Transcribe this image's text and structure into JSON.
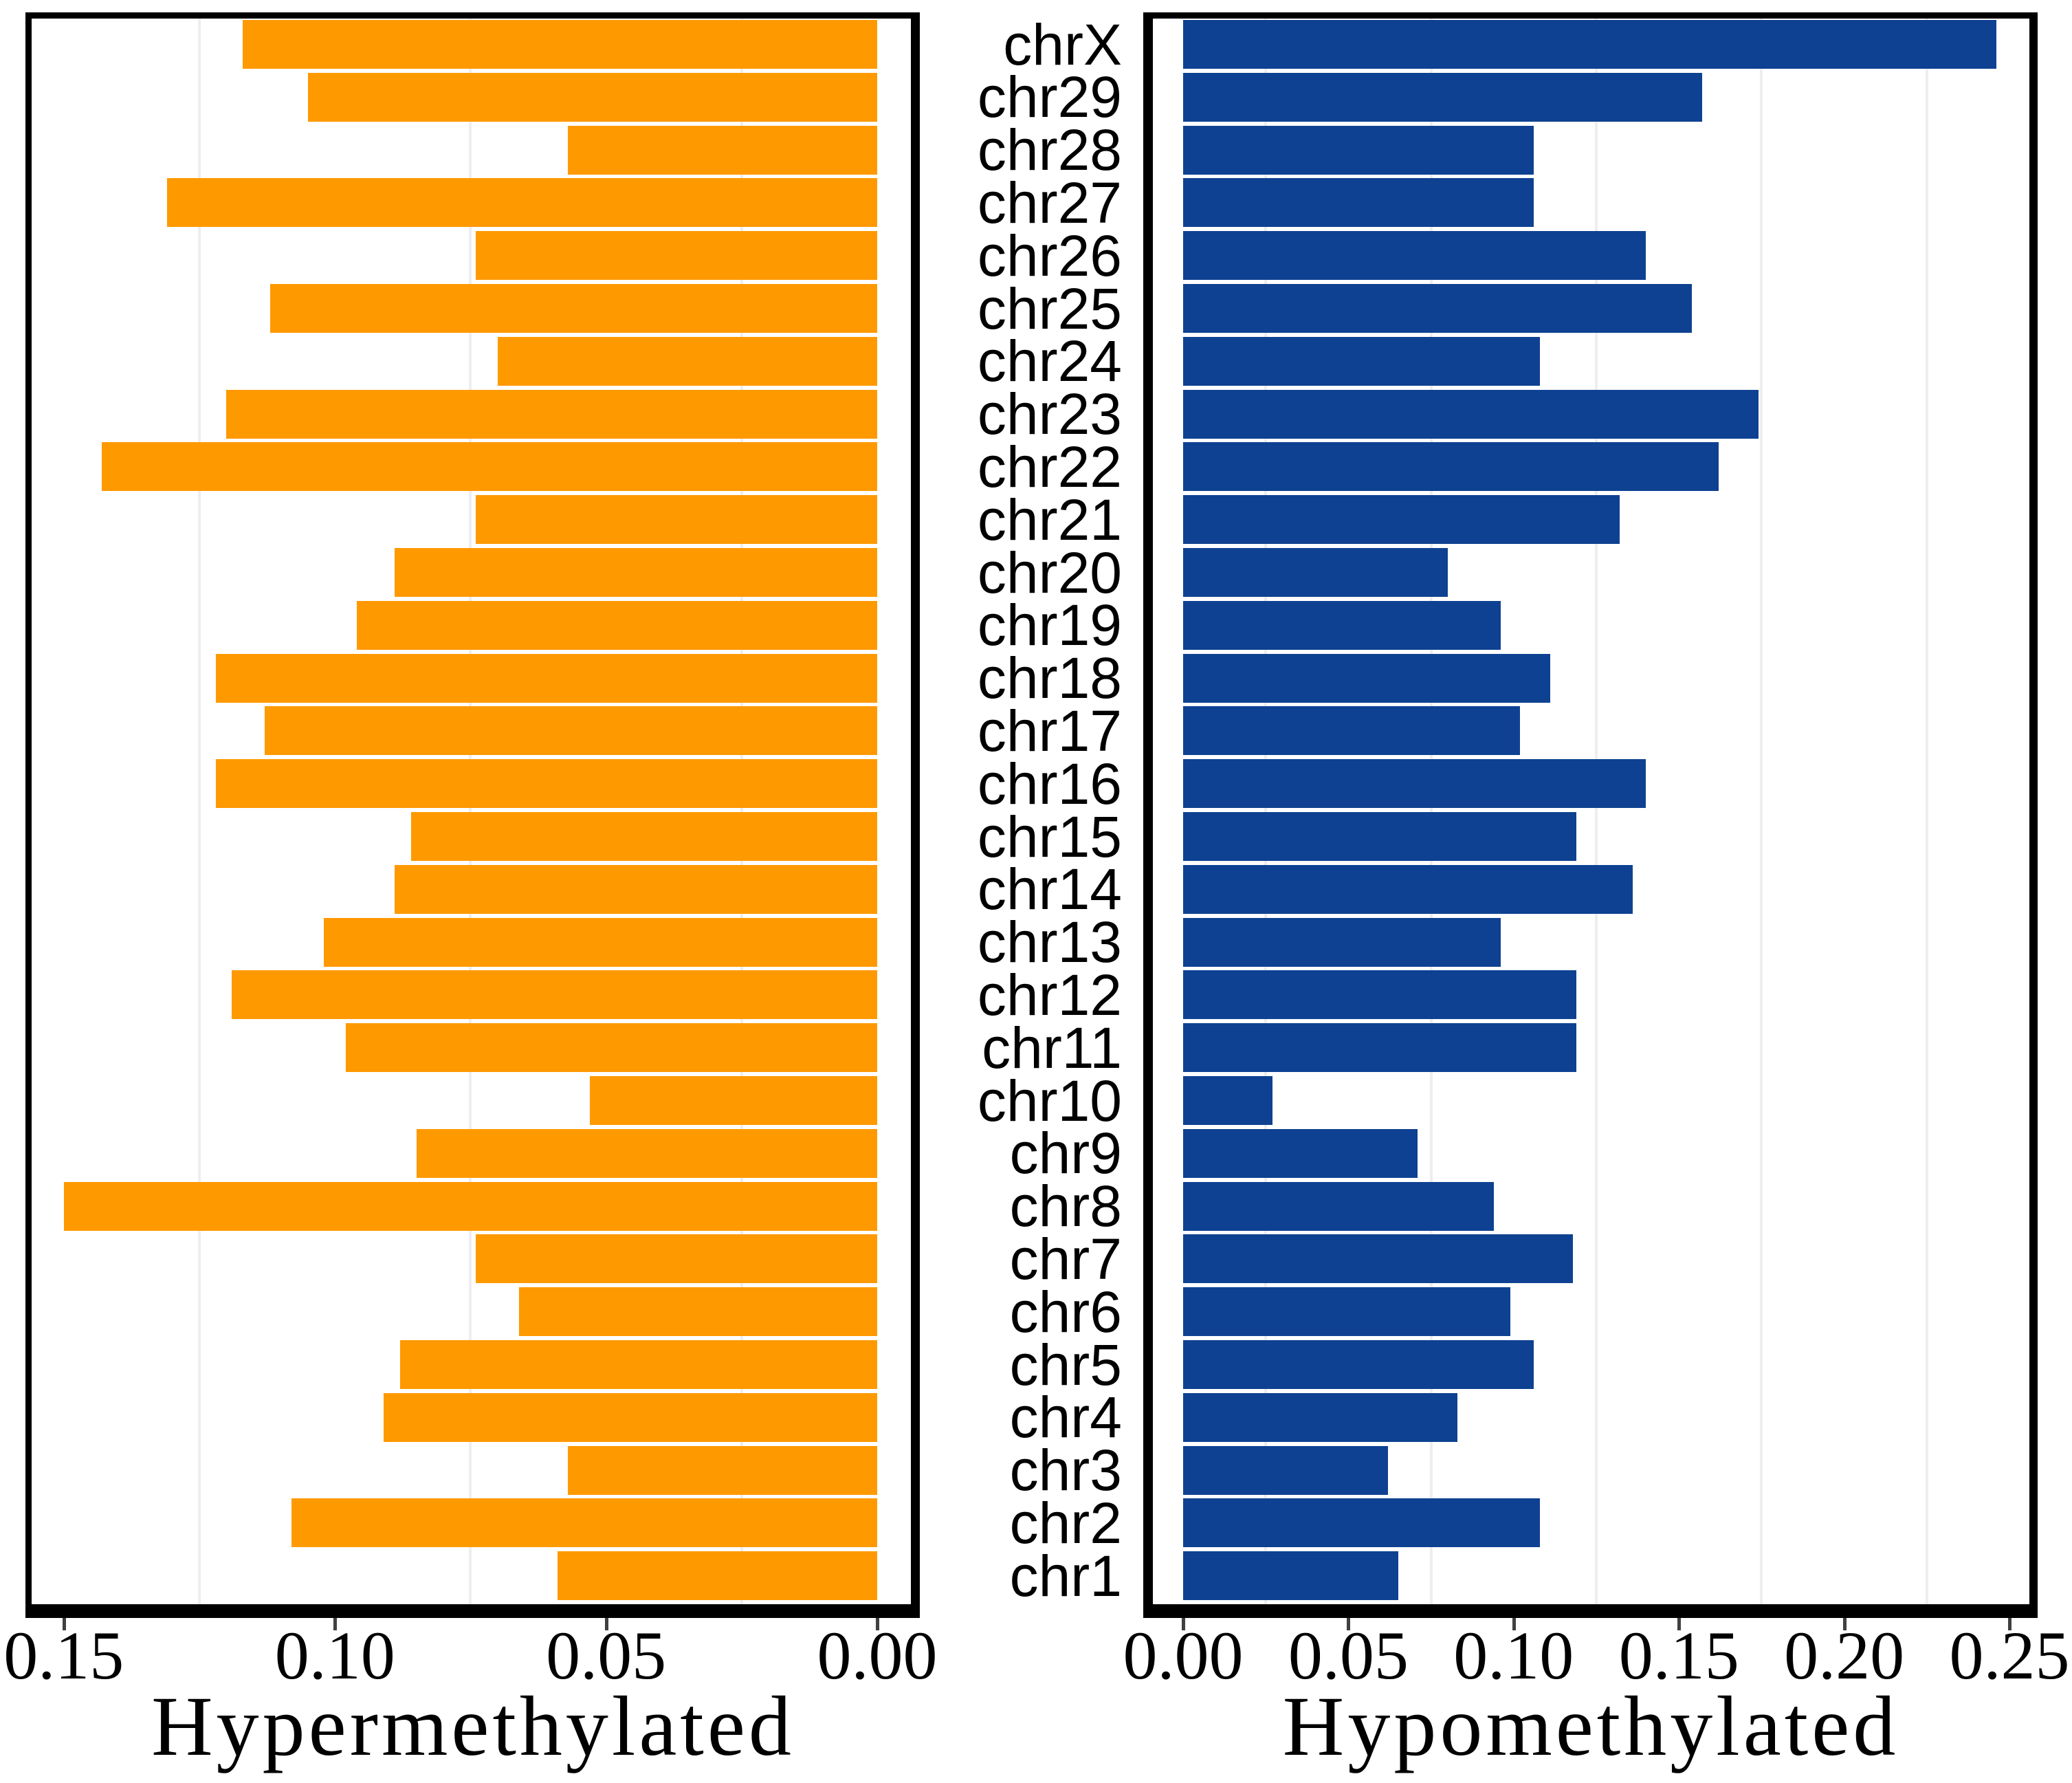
{
  "figure": {
    "kind": "two-panel horizontal bar chart",
    "background": "#FFFFFF"
  },
  "styles": {
    "bar_orange": "#FF9900",
    "bar_blue": "#0E4191",
    "panel_border": "#000000",
    "tick_mark": "#404040",
    "gridline": "#EEEEF1",
    "text": "#000000"
  },
  "chart_data": {
    "type": "bar",
    "orientation": "horizontal",
    "layout": "two back-to-back panels sharing a central category axis, categories listed top to bottom",
    "categories": [
      "chrX",
      "chr29",
      "chr28",
      "chr27",
      "chr26",
      "chr25",
      "chr24",
      "chr23",
      "chr22",
      "chr21",
      "chr20",
      "chr19",
      "chr18",
      "chr17",
      "chr16",
      "chr15",
      "chr14",
      "chr13",
      "chr12",
      "chr11",
      "chr10",
      "chr9",
      "chr8",
      "chr7",
      "chr6",
      "chr5",
      "chr4",
      "chr3",
      "chr2",
      "chr1"
    ],
    "grid": "light minor vertical gridlines only, no major gridlines visible",
    "legend": "none",
    "series": [
      {
        "name": "Hypermethylated",
        "color": "#FF9900",
        "panel": "left",
        "axis_reversed": true,
        "xlim": [
          0,
          0.15
        ],
        "tick_values": [
          0.15,
          0.1,
          0.05,
          0.0
        ],
        "tick_labels": [
          "0.15",
          "0.10",
          "0.05",
          "0.00"
        ],
        "minor_gridline_values": [
          0.125,
          0.075,
          0.025
        ],
        "values": [
          0.117,
          0.105,
          0.057,
          0.131,
          0.074,
          0.112,
          0.07,
          0.12,
          0.143,
          0.074,
          0.089,
          0.096,
          0.122,
          0.113,
          0.122,
          0.086,
          0.089,
          0.102,
          0.119,
          0.098,
          0.053,
          0.085,
          0.15,
          0.074,
          0.066,
          0.088,
          0.091,
          0.057,
          0.108,
          0.059
        ]
      },
      {
        "name": "Hypomethylated",
        "color": "#0E4191",
        "panel": "right",
        "axis_reversed": false,
        "xlim": [
          0,
          0.25
        ],
        "tick_values": [
          0.0,
          0.05,
          0.1,
          0.15,
          0.2,
          0.25
        ],
        "tick_labels": [
          "0.00",
          "0.05",
          "0.10",
          "0.15",
          "0.20",
          "0.25"
        ],
        "minor_gridline_values": [
          0.025,
          0.075,
          0.125,
          0.175,
          0.225
        ],
        "values": [
          0.246,
          0.157,
          0.106,
          0.106,
          0.14,
          0.154,
          0.108,
          0.174,
          0.162,
          0.132,
          0.08,
          0.096,
          0.111,
          0.102,
          0.14,
          0.119,
          0.136,
          0.096,
          0.119,
          0.119,
          0.027,
          0.071,
          0.094,
          0.118,
          0.099,
          0.106,
          0.083,
          0.062,
          0.108,
          0.065
        ]
      }
    ]
  }
}
